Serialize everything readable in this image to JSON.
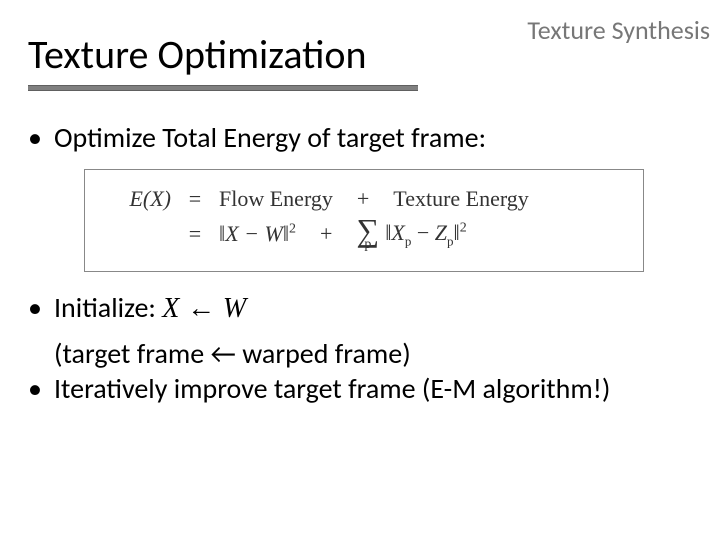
{
  "header": {
    "label": "Texture Synthesis",
    "label_color": "#777777",
    "label_fontsize": 26
  },
  "title": {
    "text": "Texture Optimization",
    "fontsize": 40,
    "underline_color": "#808080"
  },
  "bullets": {
    "b1": "Optimize Total Energy of target frame:",
    "b2_prefix": "Initialize:  ",
    "b2_math_X": "X",
    "b2_arrow": " ← ",
    "b2_math_W": "W",
    "b2_line2": "(target frame ← warped frame)",
    "b3": "Iteratively improve target frame (E-M algorithm!)"
  },
  "formula": {
    "lhs": "E(X)",
    "eq": "=",
    "row1_rhs1": "Flow Energy",
    "plus": "+",
    "row1_rhs2": "Texture Energy",
    "row2_term1_open": "‖",
    "row2_term1_inner": "X − W",
    "row2_term1_close": "‖",
    "row2_term1_exp": "2",
    "sigma": "∑",
    "sigma_sub": "p",
    "row2_term2_open": "‖",
    "row2_term2_X": "X",
    "row2_term2_sub1": "p",
    "row2_term2_minus": " − ",
    "row2_term2_Z": "Z",
    "row2_term2_sub2": "p",
    "row2_term2_close": "‖",
    "row2_term2_exp": "2",
    "border_color": "#888888",
    "text_color": "#333333",
    "fontsize": 22
  },
  "colors": {
    "background": "#ffffff",
    "text": "#000000"
  }
}
